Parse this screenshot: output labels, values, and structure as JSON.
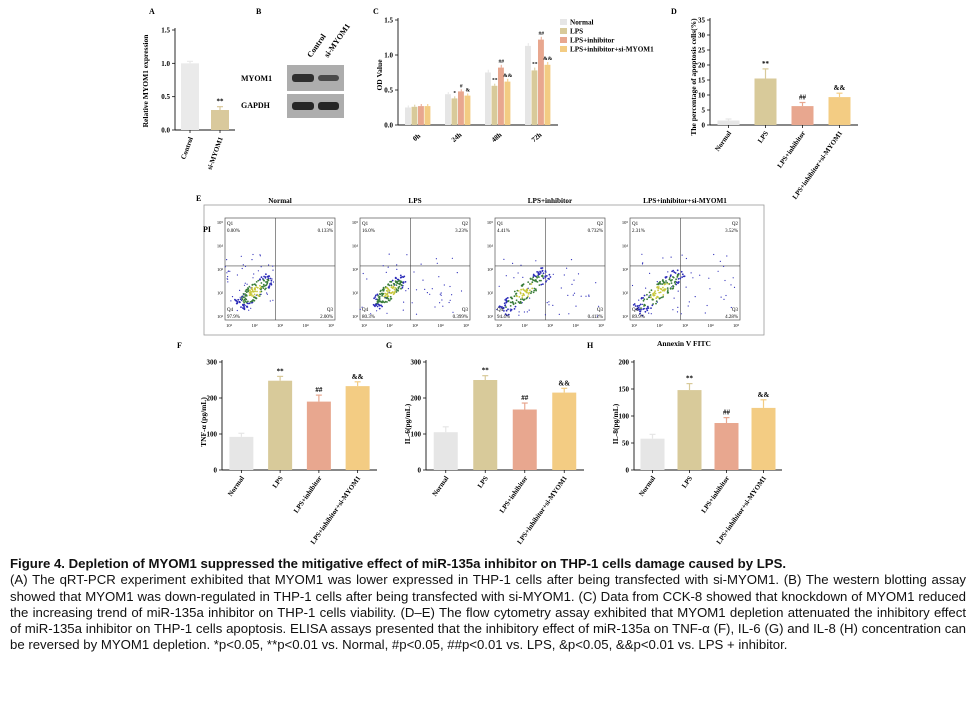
{
  "colors": {
    "normal": "#e6e6e6",
    "lps": "#d8ca9a",
    "inhibitor": "#e8a78f",
    "si_myom1": "#f3cc83",
    "si_bar": "#d9c99c",
    "control_bar": "#eaeaea",
    "scatter_low": "#3a7d3a",
    "scatter_mid": "#c8c83c",
    "scatter_cloud": "#2b2bb8"
  },
  "panel_a": {
    "letter": "A",
    "chart_data": {
      "type": "bar",
      "categories": [
        "Control",
        "si-MYOM1"
      ],
      "values": [
        1.0,
        0.3
      ],
      "errors": [
        0.03,
        0.05
      ],
      "ylabel": "Relative MYOM1 expression",
      "yticks": [
        "0.0",
        "0.5",
        "1.0",
        "1.5"
      ],
      "ylim": [
        0,
        1.5
      ],
      "annotations": [
        "",
        "**"
      ]
    }
  },
  "panel_b": {
    "letter": "B",
    "lanes": [
      "Control",
      "si-MYOM1"
    ],
    "rows": [
      "MYOM1",
      "GAPDH"
    ]
  },
  "panel_c": {
    "letter": "C",
    "chart_data": {
      "type": "bar",
      "ylabel": "OD Value",
      "yticks": [
        "0.0",
        "0.5",
        "1.0",
        "1.5"
      ],
      "ylim": [
        0,
        1.5
      ],
      "categories": [
        "0h",
        "24h",
        "48h",
        "72h"
      ],
      "series": [
        {
          "name": "Normal",
          "values": [
            0.25,
            0.44,
            0.75,
            1.13
          ],
          "errors": [
            0.03,
            0.03,
            0.04,
            0.04
          ],
          "marks": [
            "",
            "",
            "",
            ""
          ]
        },
        {
          "name": "LPS",
          "values": [
            0.26,
            0.38,
            0.56,
            0.78
          ],
          "errors": [
            0.03,
            0.03,
            0.03,
            0.04
          ],
          "marks": [
            "",
            "*",
            "**",
            "**"
          ]
        },
        {
          "name": "LPS+inhibitor",
          "values": [
            0.27,
            0.48,
            0.82,
            1.22
          ],
          "errors": [
            0.03,
            0.03,
            0.04,
            0.04
          ],
          "marks": [
            "",
            "#",
            "##",
            "##"
          ]
        },
        {
          "name": "LPS+inhibitor+si-MYOM1",
          "values": [
            0.27,
            0.42,
            0.62,
            0.86
          ],
          "errors": [
            0.03,
            0.03,
            0.04,
            0.04
          ],
          "marks": [
            "",
            "&",
            "&&",
            "&&"
          ]
        }
      ]
    }
  },
  "panel_d": {
    "letter": "D",
    "chart_data": {
      "type": "bar",
      "categories": [
        "Normal",
        "LPS",
        "LPS+inhibitor",
        "LPS+inhibitor+si-MYOM1"
      ],
      "values": [
        1.5,
        15.5,
        6.3,
        9.3
      ],
      "errors": [
        0.5,
        3.2,
        1.2,
        1.3
      ],
      "ylabel": "The percentage of apoptosis cells(%)",
      "yticks": [
        "0",
        "5",
        "10",
        "15",
        "20",
        "25",
        "30",
        "35"
      ],
      "ylim": [
        0,
        35
      ],
      "annotations": [
        "",
        "**",
        "##",
        "&&"
      ]
    }
  },
  "panel_e": {
    "letter": "E",
    "y_axis_label": "PI",
    "x_axis_label": "Annexin V FITC",
    "y_ticks": [
      "10⁵",
      "10⁴",
      "10³",
      "10²",
      "10¹"
    ],
    "x_ticks": [
      "10¹",
      "10²",
      "10³",
      "10⁴",
      "10⁵"
    ],
    "plots": [
      {
        "title": "Normal",
        "q1": "Q1",
        "q1v": "0.00%",
        "q2": "Q2",
        "q2v": "0.133%",
        "q3": "Q3",
        "q3v": "2.00%",
        "q4": "Q4",
        "q4v": "97.9%"
      },
      {
        "title": "LPS",
        "q1": "Q1",
        "q1v": "16.0%",
        "q2": "Q2",
        "q2v": "3.23%",
        "q3": "Q3",
        "q3v": "0.399%",
        "q4": "Q4",
        "q4v": "80.3%"
      },
      {
        "title": "LPS+inhibitor",
        "q1": "Q1",
        "q1v": "4.41%",
        "q2": "Q2",
        "q2v": "0.732%",
        "q3": "Q3",
        "q3v": "0.412%",
        "q4": "Q4",
        "q4v": "94.4%"
      },
      {
        "title": "LPS+inhibitor+si-MYOM1",
        "q1": "Q1",
        "q1v": "2.31%",
        "q2": "Q2",
        "q2v": "3.52%",
        "q3": "Q3",
        "q3v": "4.28%",
        "q4": "Q4",
        "q4v": "89.9%"
      }
    ]
  },
  "panel_f": {
    "letter": "F",
    "chart_data": {
      "type": "bar",
      "categories": [
        "Normal",
        "LPS",
        "LPS+inhibitor",
        "LPS+inhibitor+si-MYOM1"
      ],
      "values": [
        92,
        248,
        190,
        233
      ],
      "errors": [
        10,
        12,
        18,
        12
      ],
      "ylabel": "TNF-α (pg/mL)",
      "yticks": [
        "0",
        "100",
        "200",
        "300"
      ],
      "ylim": [
        0,
        300
      ],
      "annotations": [
        "",
        "**",
        "##",
        "&&"
      ]
    }
  },
  "panel_g": {
    "letter": "G",
    "chart_data": {
      "type": "bar",
      "categories": [
        "Normal",
        "LPS",
        "LPS+inhibitor",
        "LPS+inhibitor+si-MYOM1"
      ],
      "values": [
        105,
        250,
        168,
        215
      ],
      "errors": [
        15,
        12,
        18,
        12
      ],
      "ylabel": "IL-6(pg/mL)",
      "yticks": [
        "0",
        "100",
        "200",
        "300"
      ],
      "ylim": [
        0,
        300
      ],
      "annotations": [
        "",
        "**",
        "##",
        "&&"
      ]
    }
  },
  "panel_h": {
    "letter": "H",
    "chart_data": {
      "type": "bar",
      "categories": [
        "Normal",
        "LPS",
        "LPS+inhibitor",
        "LPS+inhibitor+si-MYOM1"
      ],
      "values": [
        58,
        148,
        87,
        115
      ],
      "errors": [
        8,
        12,
        10,
        15
      ],
      "ylabel": "IL-8(pg/mL)",
      "yticks": [
        "0",
        "50",
        "100",
        "150",
        "200"
      ],
      "ylim": [
        0,
        200
      ],
      "annotations": [
        "",
        "**",
        "##",
        "&&"
      ]
    }
  },
  "caption": {
    "title": "Figure 4. Depletion of MYOM1 suppressed the mitigative effect of miR-135a inhibitor on THP-1 cells damage caused by LPS.",
    "body": "(A) The qRT-PCR experiment exhibited that MYOM1 was lower expressed in THP-1 cells after being transfected with si-MYOM1. (B) The western blotting assay showed that MYOM1 was down-regulated in THP-1 cells after being transfected with si-MYOM1. (C) Data from CCK-8 showed that knockdown of MYOM1 reduced the increasing trend of miR-135a inhibitor on THP-1 cells viability. (D–E) The flow cytometry assay exhibited that MYOM1 depletion attenuated the inhibitory effect of miR-135a inhibitor on THP-1 cells apoptosis.  ELISA assays presented that the inhibitory effect of miR-135a on TNF-α (F), IL-6 (G) and IL-8 (H) concentration can be reversed by MYOM1 depletion. *p<0.05, **p<0.01 vs. Normal, #p<0.05, ##p<0.01 vs. LPS, &p<0.05, &&p<0.01 vs. LPS + inhibitor."
  }
}
